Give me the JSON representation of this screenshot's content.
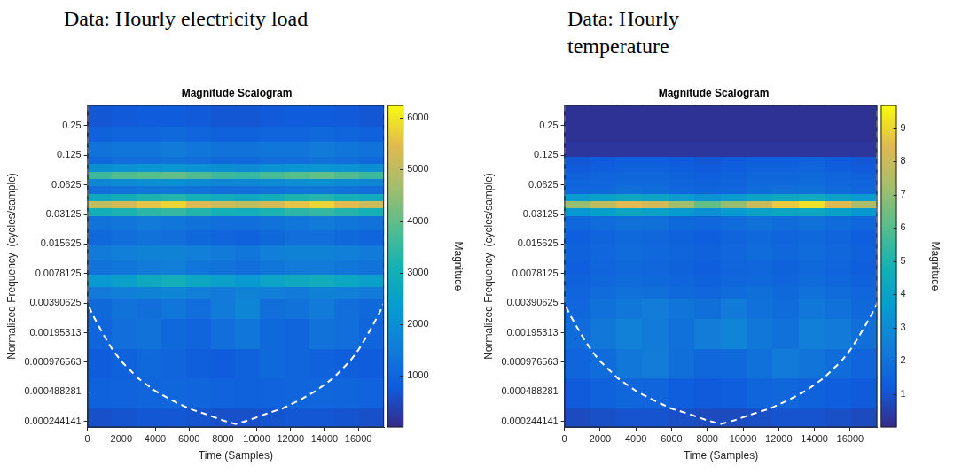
{
  "chart_data": [
    {
      "type": "heatmap",
      "heading": "Data: Hourly electricity load",
      "title": "Magnitude Scalogram",
      "x_label": "Time (Samples)",
      "y_label": "Normalized Frequency  (cycles/sample)",
      "log": "y",
      "grid": false,
      "xlim": [
        0,
        17520
      ],
      "xticks": [
        0,
        2000,
        4000,
        6000,
        8000,
        10000,
        12000,
        14000,
        16000
      ],
      "ylim": [
        0.0002125,
        0.4061
      ],
      "yticks": [
        {
          "value": 0.000244140625,
          "label": "0.000244141"
        },
        {
          "value": 0.00048828125,
          "label": "0.000488281"
        },
        {
          "value": 0.0009765625,
          "label": "0.000976563"
        },
        {
          "value": 0.001953125,
          "label": "0.00195313"
        },
        0.00390625,
        0.0078125,
        0.015625,
        0.03125,
        0.0625,
        0.125,
        0.25
      ],
      "x_edges": [
        0,
        1460,
        2920,
        4380,
        5840,
        7300,
        8760,
        10220,
        11680,
        13140,
        14600,
        16060,
        17520
      ],
      "y_edges": [
        0.0002125,
        0.0003453,
        0.0006905,
        0.001381,
        0.002762,
        0.004487,
        0.005921,
        0.0078125,
        0.01105,
        0.015625,
        0.0221,
        0.03125,
        0.03716,
        0.04419,
        0.05256,
        0.0625,
        0.07433,
        0.08839,
        0.1051,
        0.125,
        0.1768,
        0.25,
        0.4061
      ],
      "cells": [
        [
          600,
          650,
          700,
          700,
          650,
          600,
          600,
          650,
          700,
          700,
          650,
          600
        ],
        [
          900,
          950,
          1000,
          1050,
          1000,
          950,
          900,
          950,
          1000,
          1050,
          1000,
          950
        ],
        [
          800,
          900,
          1100,
          1000,
          850,
          800,
          900,
          1100,
          1000,
          900,
          850,
          800
        ],
        [
          1000,
          1200,
          1300,
          1100,
          1000,
          1200,
          1400,
          1100,
          1000,
          1300,
          1200,
          1000
        ],
        [
          1100,
          1300,
          1200,
          1400,
          1200,
          1500,
          1800,
          1200,
          1300,
          1500,
          1200,
          1100
        ],
        [
          1500,
          1600,
          1700,
          1800,
          1600,
          1500,
          1700,
          1600,
          1500,
          1700,
          1600,
          1500
        ],
        [
          2300,
          2500,
          2800,
          3000,
          2700,
          2500,
          2300,
          2600,
          2800,
          2900,
          2700,
          2500
        ],
        [
          1300,
          1400,
          1500,
          1600,
          1400,
          1300,
          1200,
          1400,
          1500,
          1500,
          1400,
          1300
        ],
        [
          1500,
          1600,
          1700,
          1700,
          1600,
          1500,
          1400,
          1600,
          1700,
          1700,
          1600,
          1500
        ],
        [
          1100,
          1200,
          1300,
          1200,
          1100,
          1000,
          900,
          1100,
          1200,
          1200,
          1100,
          1000
        ],
        [
          1300,
          1400,
          1500,
          1400,
          1300,
          1200,
          1200,
          1300,
          1400,
          1500,
          1400,
          1300
        ],
        [
          3000,
          3200,
          3400,
          3500,
          3300,
          3100,
          3000,
          3200,
          3400,
          3500,
          3300,
          3100
        ],
        [
          5000,
          5300,
          5600,
          5800,
          5400,
          5200,
          5000,
          5300,
          5600,
          5800,
          5500,
          5200
        ],
        [
          2800,
          3000,
          3200,
          3300,
          3100,
          2900,
          2800,
          3000,
          3200,
          3300,
          3100,
          2900
        ],
        [
          1200,
          1300,
          1400,
          1400,
          1300,
          1200,
          1200,
          1300,
          1400,
          1400,
          1300,
          1200
        ],
        [
          1800,
          1900,
          2000,
          2000,
          1900,
          1800,
          1800,
          1900,
          2000,
          2000,
          1900,
          1800
        ],
        [
          3600,
          3800,
          3900,
          4000,
          3800,
          3600,
          3500,
          3700,
          3900,
          4000,
          3800,
          3600
        ],
        [
          2000,
          2100,
          2200,
          2200,
          2100,
          2000,
          1900,
          2100,
          2200,
          2200,
          2100,
          2000
        ],
        [
          1100,
          1200,
          1200,
          1300,
          1200,
          1100,
          1100,
          1200,
          1200,
          1300,
          1200,
          1100
        ],
        [
          1300,
          1400,
          1400,
          1500,
          1400,
          1300,
          1300,
          1400,
          1400,
          1500,
          1400,
          1300
        ],
        [
          900,
          1000,
          1000,
          1100,
          1000,
          900,
          900,
          1000,
          1000,
          1100,
          1000,
          900
        ],
        [
          700,
          750,
          800,
          800,
          750,
          700,
          700,
          750,
          800,
          800,
          750,
          700
        ]
      ],
      "color_range": [
        0,
        6250
      ],
      "color_ticks": [
        1000,
        2000,
        3000,
        4000,
        5000,
        6000
      ],
      "color_label": "Magnitude",
      "cone_of_influence": {
        "color": "#ffffff",
        "line_style": "dashed",
        "x": [
          0,
          0,
          300,
          600,
          1000,
          1500,
          2000,
          3000,
          4000,
          5000,
          6000,
          7000,
          8000,
          8760,
          9500,
          10500,
          11500,
          12500,
          13500,
          14500,
          15500,
          16000,
          16500,
          16900,
          17200,
          17520,
          17520
        ],
        "values": [
          0.4061,
          0.0039,
          0.003,
          0.0024,
          0.0018,
          0.0013,
          0.001,
          0.00067,
          0.0005,
          0.0004,
          0.00033,
          0.00029,
          0.00025,
          0.00023,
          0.00025,
          0.00029,
          0.00033,
          0.0004,
          0.0005,
          0.00067,
          0.001,
          0.0013,
          0.0018,
          0.0024,
          0.003,
          0.0039,
          0.4061
        ]
      }
    },
    {
      "type": "heatmap",
      "heading": "Data: Hourly temperature",
      "title": "Magnitude Scalogram",
      "x_label": "Time (Samples)",
      "y_label": "Normalized Frequency  (cycles/sample)",
      "log": "y",
      "grid": false,
      "xlim": [
        0,
        17520
      ],
      "xticks": [
        0,
        2000,
        4000,
        6000,
        8000,
        10000,
        12000,
        14000,
        16000
      ],
      "ylim": [
        0.0002125,
        0.4061
      ],
      "yticks": [
        {
          "value": 0.000244140625,
          "label": "0.000244141"
        },
        {
          "value": 0.00048828125,
          "label": "0.000488281"
        },
        {
          "value": 0.0009765625,
          "label": "0.000976563"
        },
        {
          "value": 0.001953125,
          "label": "0.00195313"
        },
        0.00390625,
        0.0078125,
        0.015625,
        0.03125,
        0.0625,
        0.125,
        0.25
      ],
      "x_edges": [
        0,
        1460,
        2920,
        4380,
        5840,
        7300,
        8760,
        10220,
        11680,
        13140,
        14600,
        16060,
        17520
      ],
      "y_edges": [
        0.0002125,
        0.0003453,
        0.0006905,
        0.001381,
        0.002762,
        0.004487,
        0.005921,
        0.0078125,
        0.01105,
        0.015625,
        0.0221,
        0.03125,
        0.03716,
        0.04419,
        0.05256,
        0.0625,
        0.07433,
        0.08839,
        0.1051,
        0.125,
        0.1768,
        0.25,
        0.4061
      ],
      "cells": [
        [
          0.8,
          0.9,
          1.0,
          1.0,
          0.9,
          0.8,
          0.8,
          0.9,
          1.0,
          1.0,
          0.9,
          0.8
        ],
        [
          1.2,
          1.4,
          1.6,
          1.5,
          1.3,
          1.2,
          1.3,
          1.5,
          1.6,
          1.4,
          1.3,
          1.2
        ],
        [
          1.5,
          1.8,
          2.2,
          2.4,
          1.9,
          1.6,
          1.7,
          2.0,
          2.3,
          2.1,
          1.8,
          1.5
        ],
        [
          1.8,
          2.2,
          2.6,
          2.3,
          2.0,
          2.4,
          2.7,
          2.2,
          2.0,
          2.5,
          2.3,
          1.9
        ],
        [
          1.6,
          2.0,
          2.2,
          2.4,
          2.1,
          1.9,
          2.3,
          2.0,
          1.8,
          2.2,
          2.0,
          1.7
        ],
        [
          1.5,
          1.8,
          2.0,
          1.9,
          1.7,
          1.6,
          1.8,
          1.9,
          1.7,
          2.0,
          1.8,
          1.6
        ],
        [
          1.4,
          1.6,
          1.8,
          1.7,
          1.5,
          1.4,
          1.6,
          1.7,
          1.5,
          1.8,
          1.6,
          1.4
        ],
        [
          1.3,
          1.5,
          1.7,
          1.6,
          1.4,
          1.3,
          1.5,
          1.6,
          1.4,
          1.7,
          1.5,
          1.3
        ],
        [
          1.4,
          1.6,
          1.8,
          1.7,
          1.5,
          1.4,
          1.6,
          1.8,
          1.6,
          1.8,
          1.6,
          1.4
        ],
        [
          1.3,
          1.5,
          1.7,
          1.6,
          1.4,
          1.3,
          1.5,
          1.7,
          1.5,
          1.7,
          1.5,
          1.3
        ],
        [
          1.6,
          1.8,
          2.0,
          1.9,
          1.7,
          1.6,
          1.8,
          2.0,
          1.8,
          2.0,
          1.8,
          1.6
        ],
        [
          3.5,
          3.8,
          4.2,
          4.0,
          3.6,
          3.2,
          3.6,
          4.0,
          4.2,
          4.3,
          3.9,
          3.5
        ],
        [
          7.0,
          7.8,
          8.5,
          8.2,
          7.2,
          6.2,
          7.0,
          8.0,
          8.8,
          9.2,
          8.4,
          7.4
        ],
        [
          3.6,
          3.9,
          4.3,
          4.1,
          3.7,
          3.3,
          3.7,
          4.1,
          4.3,
          4.4,
          4.0,
          3.6
        ],
        [
          1.6,
          1.7,
          1.9,
          1.8,
          1.6,
          1.5,
          1.6,
          1.8,
          1.9,
          2.0,
          1.8,
          1.6
        ],
        [
          1.5,
          1.6,
          1.7,
          1.7,
          1.5,
          1.4,
          1.5,
          1.7,
          1.7,
          1.8,
          1.6,
          1.5
        ],
        [
          1.4,
          1.5,
          1.6,
          1.6,
          1.4,
          1.3,
          1.4,
          1.6,
          1.6,
          1.7,
          1.5,
          1.4
        ],
        [
          1.2,
          1.3,
          1.4,
          1.4,
          1.3,
          1.2,
          1.3,
          1.4,
          1.4,
          1.5,
          1.3,
          1.2
        ],
        [
          1.1,
          1.2,
          1.3,
          1.3,
          1.2,
          1.1,
          1.2,
          1.3,
          1.3,
          1.4,
          1.2,
          1.1
        ],
        [
          0.3,
          0.3,
          0.3,
          0.3,
          0.3,
          0.3,
          0.3,
          0.3,
          0.3,
          0.3,
          0.3,
          0.3
        ],
        [
          0.2,
          0.2,
          0.2,
          0.2,
          0.2,
          0.2,
          0.2,
          0.2,
          0.2,
          0.2,
          0.2,
          0.2
        ],
        [
          0.2,
          0.2,
          0.2,
          0.2,
          0.2,
          0.2,
          0.2,
          0.2,
          0.2,
          0.2,
          0.2,
          0.2
        ]
      ],
      "color_range": [
        0,
        9.7
      ],
      "color_ticks": [
        1,
        2,
        3,
        4,
        5,
        6,
        7,
        8,
        9
      ],
      "color_label": "Magnitude",
      "cone_of_influence": {
        "color": "#ffffff",
        "line_style": "dashed",
        "x": [
          0,
          0,
          300,
          600,
          1000,
          1500,
          2000,
          3000,
          4000,
          5000,
          6000,
          7000,
          8000,
          8760,
          9500,
          10500,
          11500,
          12500,
          13500,
          14500,
          15500,
          16000,
          16500,
          16900,
          17200,
          17520,
          17520
        ],
        "values": [
          0.4061,
          0.0039,
          0.003,
          0.0024,
          0.0018,
          0.0013,
          0.001,
          0.00067,
          0.0005,
          0.0004,
          0.00033,
          0.00029,
          0.00025,
          0.00023,
          0.00025,
          0.00029,
          0.00033,
          0.0004,
          0.0005,
          0.00067,
          0.001,
          0.0013,
          0.0018,
          0.0024,
          0.003,
          0.0039,
          0.4061
        ]
      }
    }
  ]
}
